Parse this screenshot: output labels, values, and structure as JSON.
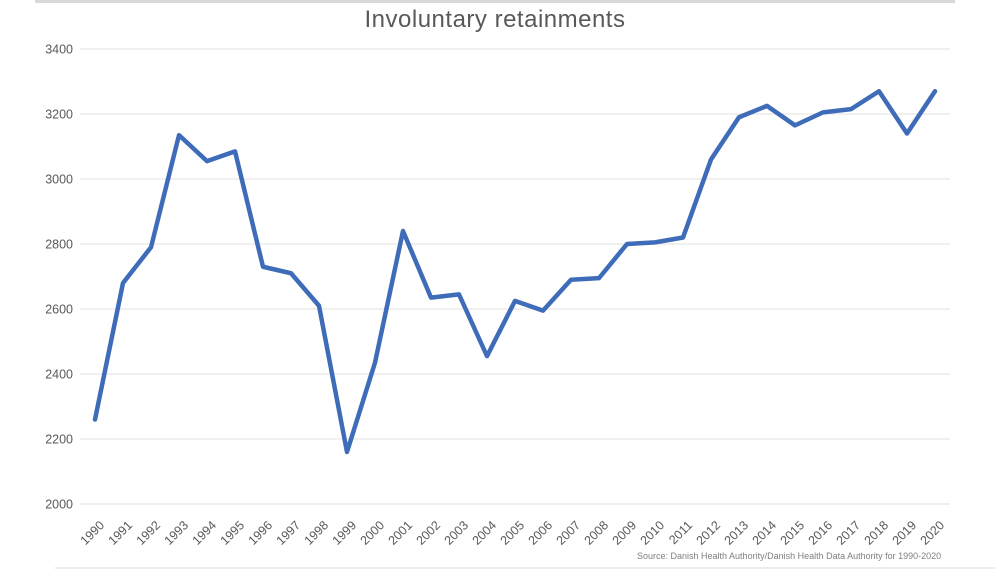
{
  "page": {
    "source_note": "Source: Danish Health Authority/Danish Health Data Authority for 1990-2020"
  },
  "colors": {
    "line": "#3e6cb8",
    "grid": "#e2e2e2",
    "axis_text": "#595959",
    "title_text": "#595959",
    "source_text": "#7f7f7f",
    "edge_bar_top": "#d8d8d8",
    "edge_bar_bottom": "#ececec"
  },
  "chart_data": {
    "type": "line",
    "title": "Involuntary retainments",
    "xlabel": "",
    "ylabel": "",
    "x": [
      1990,
      1991,
      1992,
      1993,
      1994,
      1995,
      1996,
      1997,
      1998,
      1999,
      2000,
      2001,
      2002,
      2003,
      2004,
      2005,
      2006,
      2007,
      2008,
      2009,
      2010,
      2011,
      2012,
      2013,
      2014,
      2015,
      2016,
      2017,
      2018,
      2019,
      2020
    ],
    "series": [
      {
        "name": "Involuntary retainments",
        "values": [
          2260,
          2680,
          2790,
          3135,
          3055,
          3085,
          2730,
          2710,
          2610,
          2160,
          2435,
          2840,
          2635,
          2645,
          2455,
          2625,
          2595,
          2690,
          2695,
          2800,
          2805,
          2820,
          3060,
          3190,
          3225,
          3165,
          3205,
          3215,
          3270,
          3140,
          3270
        ]
      }
    ],
    "ylim": [
      2000,
      3400
    ],
    "ytick_step": 200,
    "yticks": [
      2000,
      2200,
      2400,
      2600,
      2800,
      3000,
      3200,
      3400
    ],
    "grid": true,
    "legend_position": "none"
  }
}
